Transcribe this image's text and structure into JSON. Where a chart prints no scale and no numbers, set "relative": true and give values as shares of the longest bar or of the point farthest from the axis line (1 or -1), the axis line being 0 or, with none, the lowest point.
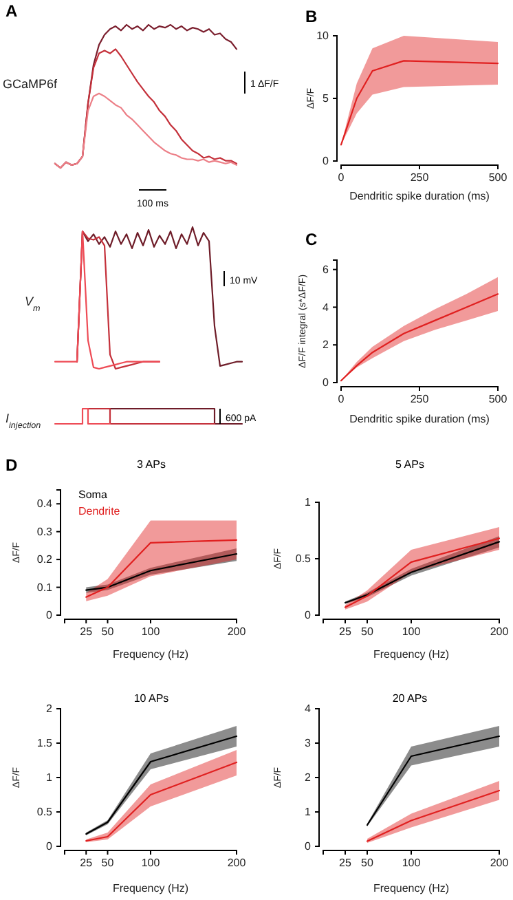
{
  "chart_data": [
    {
      "type": "line",
      "title": "A",
      "ylabel": "GCaMP6f",
      "relative": true,
      "annotations": [
        "1 ΔF/F",
        "100 ms"
      ],
      "categories": [
        null,
        null,
        null,
        null,
        null,
        null,
        null,
        null,
        null,
        null,
        null,
        null,
        null,
        null,
        null,
        null,
        null,
        null,
        null,
        null,
        null,
        null,
        null,
        null,
        null,
        null,
        null,
        null,
        null,
        null,
        null,
        null,
        null,
        null
      ],
      "series": [
        {
          "color": "#7b1f2e",
          "values": [
            0.03,
            0,
            0.04,
            0.02,
            0.03,
            0.08,
            0.45,
            0.72,
            0.86,
            0.93,
            0.97,
            0.99,
            0.96,
            1.0,
            0.97,
            0.99,
            0.96,
            1.0,
            0.97,
            0.99,
            0.98,
            1.0,
            0.97,
            0.99,
            0.96,
            0.98,
            0.97,
            0.95,
            0.97,
            0.93,
            0.94,
            0.9,
            0.88,
            0.83
          ]
        },
        {
          "color": "#c4303a",
          "values": [
            0.03,
            0,
            0.04,
            0.02,
            0.03,
            0.08,
            0.45,
            0.7,
            0.8,
            0.82,
            0.8,
            0.83,
            0.78,
            0.72,
            0.66,
            0.6,
            0.55,
            0.5,
            0.46,
            0.4,
            0.36,
            0.3,
            0.26,
            0.2,
            0.16,
            0.12,
            0.1,
            0.07,
            0.08,
            0.06,
            0.07,
            0.05,
            0.05,
            0.03
          ]
        },
        {
          "color": "#ec7f87",
          "values": [
            0.03,
            0,
            0.04,
            0.02,
            0.03,
            0.08,
            0.4,
            0.5,
            0.52,
            0.5,
            0.47,
            0.44,
            0.42,
            0.37,
            0.34,
            0.3,
            0.26,
            0.22,
            0.18,
            0.15,
            0.12,
            0.1,
            0.09,
            0.07,
            0.06,
            0.06,
            0.05,
            0.06,
            0.04,
            0.05,
            0.04,
            0.03,
            0.04,
            0.02
          ]
        }
      ]
    },
    {
      "type": "line",
      "ylabel": "V$_{m}$",
      "relative": true,
      "annotations": [
        "10 mV"
      ],
      "categories": [
        null,
        null,
        null,
        null,
        null,
        null,
        null,
        null,
        null,
        null,
        null,
        null,
        null,
        null,
        null,
        null,
        null,
        null,
        null,
        null,
        null,
        null,
        null,
        null,
        null,
        null,
        null,
        null,
        null,
        null,
        null,
        null,
        null,
        null,
        null
      ],
      "series": [
        {
          "color": "#6e1c28",
          "values": [
            null,
            null,
            null,
            null,
            0.05,
            0.97,
            0.9,
            0.95,
            0.88,
            0.93,
            0.86,
            0.97,
            0.88,
            0.95,
            0.85,
            0.96,
            0.87,
            0.98,
            0.86,
            0.94,
            0.88,
            0.97,
            0.85,
            0.95,
            0.88,
            1.0,
            0.87,
            0.96,
            0.9,
            0.3,
            0.02,
            0.03,
            0.04,
            0.05,
            0.05
          ]
        },
        {
          "color": "#c4303a",
          "values": [
            null,
            null,
            null,
            null,
            0.05,
            0.97,
            0.92,
            0.91,
            0.93,
            0.87,
            0.1,
            0.0,
            0.01,
            0.02,
            0.03,
            0.04,
            0.05,
            0.05,
            0.05,
            0.05,
            null,
            null,
            null,
            null,
            null,
            null,
            null,
            null,
            null,
            null,
            null,
            null,
            null,
            null,
            null
          ]
        },
        {
          "color": "#ee4b55",
          "values": [
            0.05,
            0.05,
            0.05,
            0.05,
            0.05,
            0.97,
            0.2,
            0.01,
            0.0,
            0.01,
            0.02,
            0.03,
            0.04,
            0.05,
            0.05,
            0.05,
            0.05,
            0.05,
            0.05,
            0.05,
            null,
            null,
            null,
            null,
            null,
            null,
            null,
            null,
            null,
            null,
            null,
            null,
            null,
            null,
            null
          ]
        }
      ]
    },
    {
      "type": "step",
      "ylabel": "I$_{injection}$",
      "relative": true,
      "annotations": [
        "600 pA"
      ],
      "categories": [
        null,
        null,
        null,
        null,
        null,
        null,
        null,
        null,
        null,
        null,
        null,
        null,
        null,
        null,
        null,
        null,
        null,
        null,
        null,
        null,
        null,
        null,
        null,
        null,
        null,
        null,
        null,
        null,
        null,
        null,
        null,
        null,
        null,
        null,
        null
      ],
      "series": [
        {
          "color": "#6e1c28",
          "values": [
            null,
            null,
            null,
            null,
            null,
            null,
            null,
            null,
            null,
            null,
            1,
            1,
            1,
            1,
            1,
            1,
            1,
            1,
            1,
            1,
            1,
            1,
            1,
            1,
            1,
            1,
            1,
            1,
            1,
            0,
            0,
            0,
            0,
            0,
            0
          ]
        },
        {
          "color": "#c4303a",
          "values": [
            null,
            null,
            null,
            null,
            null,
            null,
            1,
            1,
            1,
            1,
            0,
            0,
            0,
            0,
            0,
            0,
            0,
            0,
            0,
            0,
            0,
            0,
            0,
            0,
            0,
            0,
            0,
            0,
            0,
            0,
            null,
            null,
            null,
            null,
            null
          ]
        },
        {
          "color": "#ee4b55",
          "values": [
            0,
            0,
            0,
            0,
            0,
            1,
            0,
            0,
            0,
            0,
            0,
            null,
            null,
            null,
            null,
            null,
            null,
            null,
            null,
            null,
            null,
            null,
            null,
            null,
            null,
            null,
            null,
            null,
            null,
            null,
            null,
            null,
            null,
            null,
            null
          ]
        }
      ]
    },
    {
      "type": "line",
      "title": "B",
      "xlabel": "Dendritic spike duration (ms)",
      "ylabel": "ΔF/F",
      "xlim": [
        0,
        500
      ],
      "xticks": [
        0,
        250,
        500
      ],
      "ylim": [
        0,
        10
      ],
      "yticks": [
        0,
        5,
        10
      ],
      "x": [
        0,
        50,
        100,
        200,
        500
      ],
      "series": [
        {
          "color": "#e02020",
          "values": [
            1.3,
            5,
            7.2,
            8,
            7.8
          ],
          "lower": [
            1.3,
            3.8,
            5.3,
            5.9,
            6.1
          ],
          "upper": [
            1.3,
            6.2,
            9,
            10,
            9.5
          ]
        }
      ]
    },
    {
      "type": "line",
      "title": "C",
      "xlabel": "Dendritic spike duration (ms)",
      "ylabel": "ΔF/F integral (s*ΔF/F)",
      "xlim": [
        0,
        500
      ],
      "xticks": [
        0,
        250,
        500
      ],
      "ylim": [
        0,
        6.5
      ],
      "yticks": [
        0,
        2,
        4,
        6
      ],
      "x": [
        0,
        50,
        100,
        200,
        300,
        400,
        500
      ],
      "series": [
        {
          "color": "#e02020",
          "values": [
            0.1,
            0.9,
            1.6,
            2.6,
            3.3,
            4,
            4.7
          ],
          "lower": [
            0.1,
            0.8,
            1.3,
            2.2,
            2.8,
            3.3,
            3.8
          ],
          "upper": [
            0.1,
            1.1,
            1.9,
            3.0,
            3.9,
            4.7,
            5.6
          ]
        }
      ]
    },
    {
      "type": "line",
      "title": "3 APs",
      "annotations": [
        "D"
      ],
      "xlabel": "Frequency (Hz)",
      "ylabel": "ΔF/F",
      "xlim": [
        0,
        200
      ],
      "xticks": [
        25,
        50,
        100,
        200
      ],
      "ylim": [
        0,
        0.45
      ],
      "yticks": [
        0,
        0.1,
        0.2,
        0.3,
        0.4
      ],
      "legend": "top left",
      "x": [
        25,
        50,
        100,
        200
      ],
      "series": [
        {
          "name": "Soma",
          "color": "#000000",
          "values": [
            0.09,
            0.1,
            0.16,
            0.22
          ],
          "lower": [
            0.08,
            0.09,
            0.145,
            0.195
          ],
          "upper": [
            0.1,
            0.11,
            0.17,
            0.24
          ]
        },
        {
          "name": "Dendrite",
          "color": "#e02020",
          "values": [
            0.065,
            0.1,
            0.26,
            0.27
          ],
          "lower": [
            0.05,
            0.07,
            0.14,
            0.2
          ],
          "upper": [
            0.08,
            0.13,
            0.34,
            0.34
          ]
        }
      ]
    },
    {
      "type": "line",
      "title": "5 APs",
      "xlabel": "Frequency (Hz)",
      "ylabel": "ΔF/F",
      "xlim": [
        0,
        200
      ],
      "xticks": [
        25,
        50,
        100,
        200
      ],
      "ylim": [
        0,
        1
      ],
      "yticks": [
        0,
        0.5,
        1
      ],
      "x": [
        25,
        50,
        100,
        200
      ],
      "series": [
        {
          "color": "#000000",
          "values": [
            0.11,
            0.18,
            0.38,
            0.65
          ],
          "lower": [
            0.1,
            0.16,
            0.35,
            0.6
          ],
          "upper": [
            0.12,
            0.2,
            0.41,
            0.7
          ]
        },
        {
          "color": "#e02020",
          "values": [
            0.07,
            0.17,
            0.47,
            0.68
          ],
          "lower": [
            0.05,
            0.12,
            0.38,
            0.58
          ],
          "upper": [
            0.09,
            0.22,
            0.58,
            0.78
          ]
        }
      ]
    },
    {
      "type": "line",
      "title": "10 APs",
      "xlabel": "Frequency (Hz)",
      "ylabel": "ΔF/F",
      "xlim": [
        0,
        200
      ],
      "xticks": [
        25,
        50,
        100,
        200
      ],
      "ylim": [
        0,
        2
      ],
      "yticks": [
        0,
        0.5,
        1,
        1.5,
        2
      ],
      "x": [
        25,
        50,
        100,
        200
      ],
      "series": [
        {
          "color": "#000000",
          "values": [
            0.18,
            0.35,
            1.23,
            1.6
          ],
          "lower": [
            0.16,
            0.32,
            1.12,
            1.45
          ],
          "upper": [
            0.2,
            0.38,
            1.35,
            1.75
          ]
        },
        {
          "color": "#e02020",
          "values": [
            0.08,
            0.14,
            0.75,
            1.22
          ],
          "lower": [
            0.06,
            0.1,
            0.58,
            1.03
          ],
          "upper": [
            0.1,
            0.2,
            0.9,
            1.4
          ]
        }
      ]
    },
    {
      "type": "line",
      "title": "20 APs",
      "xlabel": "Frequency (Hz)",
      "ylabel": "ΔF/F",
      "xlim": [
        0,
        200
      ],
      "xticks": [
        25,
        50,
        100,
        200
      ],
      "ylim": [
        0,
        4
      ],
      "yticks": [
        0,
        1,
        2,
        3,
        4
      ],
      "x": [
        50,
        100,
        200
      ],
      "series": [
        {
          "color": "#000000",
          "values": [
            0.62,
            2.62,
            3.2
          ],
          "lower": [
            0.58,
            2.35,
            2.9
          ],
          "upper": [
            0.66,
            2.9,
            3.5
          ]
        },
        {
          "color": "#e02020",
          "values": [
            0.15,
            0.75,
            1.62
          ],
          "lower": [
            0.1,
            0.55,
            1.35
          ],
          "upper": [
            0.22,
            0.95,
            1.9
          ]
        }
      ]
    }
  ]
}
